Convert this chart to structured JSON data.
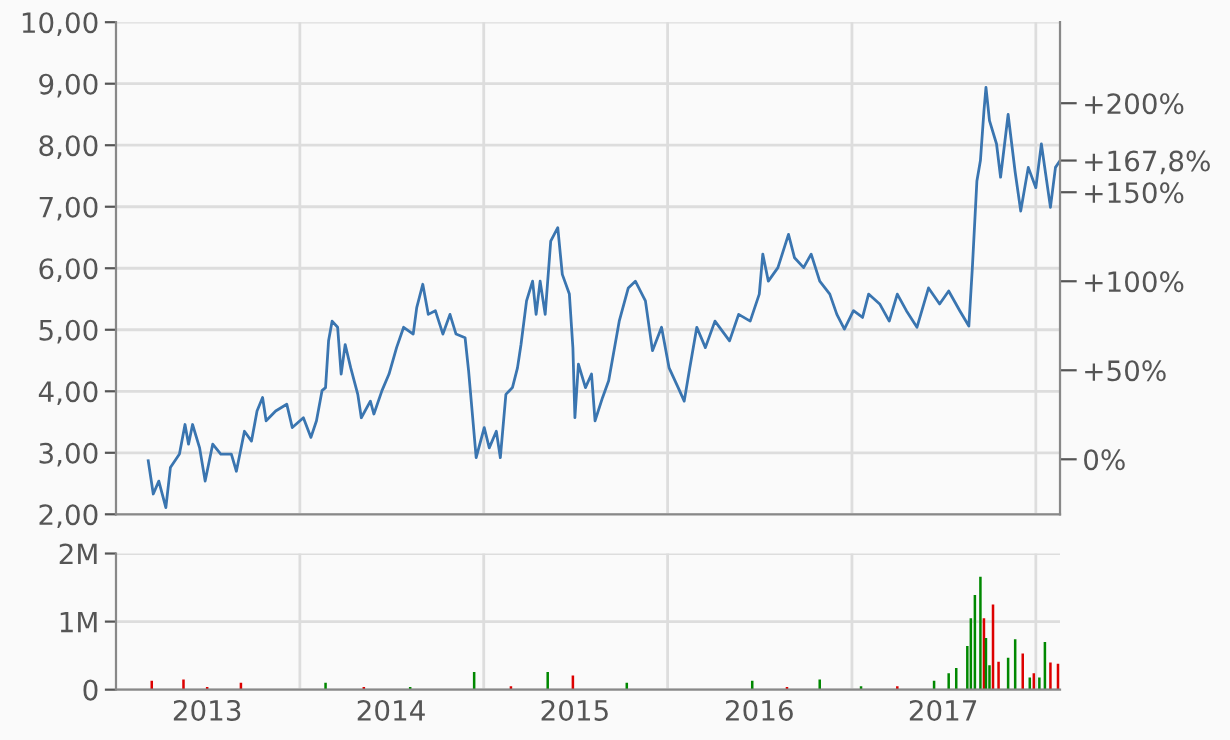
{
  "chart_data": [
    {
      "type": "line",
      "xlim": [
        "2013-01-01",
        "2018-02-18"
      ],
      "xticks": [
        {
          "value": "2014-01-01",
          "label": null
        },
        {
          "value": "2015-01-01",
          "label": null
        },
        {
          "value": "2016-01-01",
          "label": null
        },
        {
          "value": "2017-01-01",
          "label": null
        },
        {
          "value": "2018-01-01",
          "label": null
        }
      ],
      "ylim": [
        2,
        10
      ],
      "yticks": [
        {
          "value": 2,
          "label": "2,00"
        },
        {
          "value": 3,
          "label": "3,00"
        },
        {
          "value": 4,
          "label": "4,00"
        },
        {
          "value": 5,
          "label": "5,00"
        },
        {
          "value": 6,
          "label": "6,00"
        },
        {
          "value": 7,
          "label": "7,00"
        },
        {
          "value": 8,
          "label": "8,00"
        },
        {
          "value": 9,
          "label": "9,00"
        },
        {
          "value": 10,
          "label": "10,00"
        }
      ],
      "y2lim": [
        -30.9,
        245.5
      ],
      "y2ticks": [
        {
          "value": 0,
          "label": "0%"
        },
        {
          "value": 50,
          "label": "+50%"
        },
        {
          "value": 100,
          "label": "+100%"
        },
        {
          "value": 150,
          "label": "+150%"
        },
        {
          "value": 167.8,
          "label": "+167,8%"
        },
        {
          "value": 200,
          "label": "+200%"
        }
      ],
      "grid": true,
      "legend": false,
      "tick_labels": "y",
      "marker": "none",
      "line_style": "solid",
      "x": [
        "2013-03-06",
        "2013-03-16",
        "2013-03-27",
        "2013-04-10",
        "2013-04-19",
        "2013-05-07",
        "2013-05-18",
        "2013-05-25",
        "2013-06-02",
        "2013-06-16",
        "2013-06-27",
        "2013-07-12",
        "2013-07-28",
        "2013-08-18",
        "2013-08-28",
        "2013-09-13",
        "2013-09-27",
        "2013-10-08",
        "2013-10-19",
        "2013-10-26",
        "2013-11-14",
        "2013-12-06",
        "2013-12-17",
        "2014-01-08",
        "2014-01-23",
        "2014-02-03",
        "2014-02-14",
        "2014-02-21",
        "2014-02-27",
        "2014-03-06",
        "2014-03-17",
        "2014-03-24",
        "2014-04-01",
        "2014-04-12",
        "2014-04-26",
        "2014-05-03",
        "2014-05-21",
        "2014-05-28",
        "2014-06-13",
        "2014-06-27",
        "2014-07-12",
        "2014-07-26",
        "2014-08-14",
        "2014-08-21",
        "2014-09-02",
        "2014-09-13",
        "2014-09-27",
        "2014-10-12",
        "2014-10-26",
        "2014-11-07",
        "2014-11-25",
        "2014-12-02",
        "2014-12-17",
        "2015-01-02",
        "2015-01-12",
        "2015-01-26",
        "2015-02-03",
        "2015-02-14",
        "2015-02-27",
        "2015-03-09",
        "2015-03-16",
        "2015-03-27",
        "2015-04-08",
        "2015-04-15",
        "2015-04-23",
        "2015-05-03",
        "2015-05-14",
        "2015-05-28",
        "2015-06-06",
        "2015-06-20",
        "2015-06-27",
        "2015-07-01",
        "2015-07-08",
        "2015-07-22",
        "2015-08-03",
        "2015-08-10",
        "2015-08-25",
        "2015-09-06",
        "2015-09-27",
        "2015-10-15",
        "2015-10-29",
        "2015-11-18",
        "2015-12-02",
        "2015-12-20",
        "2016-01-04",
        "2016-01-22",
        "2016-02-03",
        "2016-02-14",
        "2016-02-28",
        "2016-03-16",
        "2016-04-04",
        "2016-05-03",
        "2016-05-21",
        "2016-06-13",
        "2016-07-01",
        "2016-07-08",
        "2016-07-19",
        "2016-08-07",
        "2016-08-28",
        "2016-09-09",
        "2016-09-27",
        "2016-10-12",
        "2016-10-29",
        "2016-11-18",
        "2016-12-02",
        "2016-12-17",
        "2017-01-04",
        "2017-01-22",
        "2017-02-03",
        "2017-02-25",
        "2017-03-16",
        "2017-04-01",
        "2017-04-19",
        "2017-05-10",
        "2017-06-02",
        "2017-06-24",
        "2017-07-12",
        "2017-08-03",
        "2017-08-21",
        "2017-08-28",
        "2017-09-06",
        "2017-09-13",
        "2017-09-20",
        "2017-09-24",
        "2017-10-01",
        "2017-10-15",
        "2017-10-23",
        "2017-11-07",
        "2017-11-21",
        "2017-12-02",
        "2017-12-17",
        "2018-01-01",
        "2018-01-12",
        "2018-01-30",
        "2018-02-09",
        "2018-02-18"
      ],
      "series": [
        {
          "color": "#3a75b0",
          "values": [
            2.87,
            2.33,
            2.54,
            2.11,
            2.76,
            2.98,
            3.46,
            3.14,
            3.46,
            3.08,
            2.54,
            3.14,
            2.98,
            2.98,
            2.7,
            3.35,
            3.19,
            3.68,
            3.9,
            3.52,
            3.68,
            3.79,
            3.41,
            3.57,
            3.25,
            3.52,
            4.01,
            4.06,
            4.82,
            5.14,
            5.04,
            4.28,
            4.76,
            4.38,
            3.95,
            3.57,
            3.84,
            3.63,
            4.01,
            4.28,
            4.71,
            5.04,
            4.93,
            5.36,
            5.74,
            5.25,
            5.31,
            4.93,
            5.25,
            4.93,
            4.87,
            4.33,
            2.92,
            3.41,
            3.08,
            3.35,
            2.92,
            3.95,
            4.06,
            4.38,
            4.76,
            5.47,
            5.79,
            5.25,
            5.79,
            5.25,
            6.44,
            6.66,
            5.9,
            5.58,
            4.71,
            3.57,
            4.44,
            4.06,
            4.28,
            3.52,
            3.9,
            4.17,
            5.14,
            5.68,
            5.79,
            5.47,
            4.66,
            5.04,
            4.38,
            4.06,
            3.84,
            4.38,
            5.04,
            4.71,
            5.14,
            4.82,
            5.25,
            5.14,
            5.58,
            6.23,
            5.79,
            6.01,
            6.55,
            6.17,
            6.01,
            6.23,
            5.79,
            5.58,
            5.25,
            5.01,
            5.31,
            5.2,
            5.58,
            5.42,
            5.14,
            5.58,
            5.31,
            5.04,
            5.68,
            5.42,
            5.63,
            5.31,
            5.06,
            6.01,
            7.42,
            7.75,
            8.56,
            8.94,
            8.4,
            8.02,
            7.48,
            8.5,
            7.56,
            6.93,
            7.64,
            7.31,
            8.02,
            6.99,
            7.64,
            7.75
          ]
        }
      ]
    },
    {
      "type": "bar",
      "xlim": [
        "2013-01-01",
        "2018-02-18"
      ],
      "xticks": [
        {
          "value": "2013-07-01",
          "label": "2013"
        },
        {
          "value": "2014-01-01",
          "label": null
        },
        {
          "value": "2014-07-01",
          "label": "2014"
        },
        {
          "value": "2015-01-01",
          "label": null
        },
        {
          "value": "2015-07-01",
          "label": "2015"
        },
        {
          "value": "2016-01-01",
          "label": null
        },
        {
          "value": "2016-07-01",
          "label": "2016"
        },
        {
          "value": "2017-01-01",
          "label": null
        },
        {
          "value": "2017-07-01",
          "label": "2017"
        },
        {
          "value": "2018-01-01",
          "label": null
        }
      ],
      "ylim": [
        0,
        2000000
      ],
      "yticks": [
        {
          "value": 0,
          "label": "0"
        },
        {
          "value": 1000000,
          "label": "1M"
        },
        {
          "value": 2000000,
          "label": "2M"
        }
      ],
      "grid": true,
      "legend": false,
      "x": [
        "2013-03-13",
        "2013-04-20",
        "2013-05-15",
        "2013-07-01",
        "2013-09-06",
        "2013-11-06",
        "2014-02-21",
        "2014-05-08",
        "2014-08-08",
        "2014-10-19",
        "2014-12-13",
        "2015-02-24",
        "2015-05-08",
        "2015-06-27",
        "2015-08-25",
        "2015-10-12",
        "2016-01-04",
        "2016-03-14",
        "2016-06-17",
        "2016-08-25",
        "2016-10-29",
        "2017-01-19",
        "2017-04-01",
        "2017-06-13",
        "2017-07-12",
        "2017-07-27",
        "2017-08-18",
        "2017-08-25",
        "2017-09-02",
        "2017-09-13",
        "2017-09-20",
        "2017-09-24",
        "2017-10-01",
        "2017-10-08",
        "2017-10-19",
        "2017-11-07",
        "2017-11-21",
        "2017-12-06",
        "2017-12-20",
        "2017-12-28",
        "2018-01-08",
        "2018-01-19",
        "2018-01-30",
        "2018-02-14"
      ],
      "values": [
        130000,
        null,
        150000,
        40000,
        100000,
        null,
        100000,
        40000,
        40000,
        null,
        260000,
        50000,
        260000,
        210000,
        null,
        100000,
        null,
        null,
        130000,
        40000,
        150000,
        50000,
        50000,
        130000,
        240000,
        320000,
        640000,
        1050000,
        1390000,
        1660000,
        1050000,
        760000,
        360000,
        1250000,
        410000,
        470000,
        740000,
        530000,
        180000,
        240000,
        180000,
        700000,
        400000,
        380000
      ],
      "colors": [
        "#dd0000",
        "#008800",
        "#dd0000",
        "#dd0000",
        "#dd0000",
        "#008800",
        "#008800",
        "#dd0000",
        "#008800",
        "#dd0000",
        "#008800",
        "#dd0000",
        "#008800",
        "#dd0000",
        "#dd0000",
        "#008800",
        "#dd0000",
        "#008800",
        "#008800",
        "#dd0000",
        "#008800",
        "#008800",
        "#dd0000",
        "#008800",
        "#008800",
        "#008800",
        "#008800",
        "#008800",
        "#008800",
        "#008800",
        "#dd0000",
        "#008800",
        "#008800",
        "#dd0000",
        "#dd0000",
        "#008800",
        "#008800",
        "#dd0000",
        "#008800",
        "#dd0000",
        "#008800",
        "#008800",
        "#dd0000",
        "#dd0000"
      ]
    }
  ]
}
